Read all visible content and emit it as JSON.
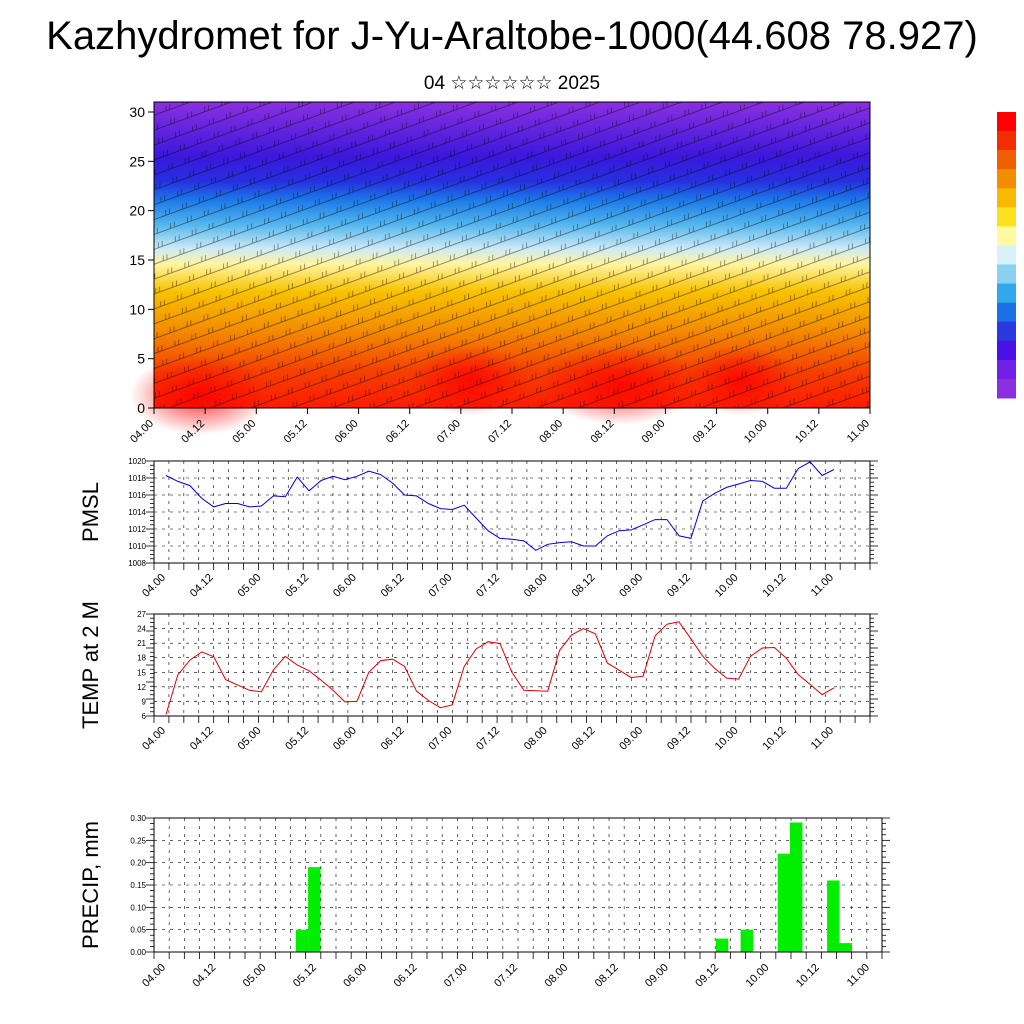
{
  "title": "Kazhydromet for J-Yu-Araltobe-1000(44.608 78.927)",
  "subtitle": "04 ☆☆☆☆☆☆ 2025",
  "colors": {
    "pmsl_line": "#0000dd",
    "temp_line": "#dd0000",
    "precip_bar": "#00ee00",
    "colorbar": [
      "#ff0000",
      "#f22d00",
      "#f06000",
      "#f48c00",
      "#f7ba00",
      "#fbe020",
      "#fff9a0",
      "#d8f0f8",
      "#8ad0f0",
      "#30a8ec",
      "#1b70e8",
      "#2a38e0",
      "#4a10e8",
      "#7020e8",
      "#8a30e0"
    ]
  },
  "chart_data": [
    {
      "type": "heatmap",
      "name": "cross-section",
      "ylim": [
        0,
        30
      ],
      "yticks": [
        0,
        5,
        10,
        15,
        20,
        25,
        30
      ],
      "x_tick_labels": [
        "04.00",
        "04.12",
        "05.00",
        "05.12",
        "06.00",
        "06.12",
        "07.00",
        "07.12",
        "08.00",
        "08.12",
        "09.00",
        "09.12",
        "10.00",
        "10.12",
        "11.00"
      ],
      "grid": false,
      "overlay": "wind barbs"
    },
    {
      "type": "line",
      "ylabel": "PMSL",
      "ylim": [
        1008,
        1020
      ],
      "yticks": [
        1008,
        1010,
        1012,
        1014,
        1016,
        1018,
        1020
      ],
      "x_tick_labels": [
        "04.00",
        "04.12",
        "05.00",
        "05.12",
        "06.00",
        "06.12",
        "07.00",
        "07.12",
        "08.00",
        "08.12",
        "09.00",
        "09.12",
        "10.00",
        "10.12",
        "11.00"
      ],
      "grid": true,
      "series": [
        {
          "values": [
            1018.3,
            1017.6,
            1017.1,
            1015.6,
            1014.6,
            1015.0,
            1015.0,
            1014.6,
            1014.7,
            1015.9,
            1015.8,
            1018.1,
            1016.5,
            1017.7,
            1018.2,
            1017.8,
            1018.2,
            1018.8,
            1018.4,
            1017.4,
            1016.0,
            1015.9,
            1015.0,
            1014.4,
            1014.3,
            1014.8,
            1013.3,
            1011.8,
            1010.9,
            1010.8,
            1010.6,
            1009.5,
            1010.2,
            1010.4,
            1010.5,
            1010.0,
            1010.0,
            1011.2,
            1011.8,
            1011.9,
            1012.5,
            1013.1,
            1013.1,
            1011.2,
            1010.9,
            1015.3,
            1016.2,
            1016.9,
            1017.3,
            1017.7,
            1017.6,
            1016.8,
            1016.8,
            1019.1,
            1019.9,
            1018.3,
            1019.0
          ]
        }
      ]
    },
    {
      "type": "line",
      "ylabel": "TEMP at 2 M",
      "ylim": [
        6,
        27
      ],
      "yticks": [
        6,
        9,
        12,
        15,
        18,
        21,
        24,
        27
      ],
      "x_tick_labels": [
        "04.00",
        "04.12",
        "05.00",
        "05.12",
        "06.00",
        "06.12",
        "07.00",
        "07.12",
        "08.00",
        "08.12",
        "09.00",
        "09.12",
        "10.00",
        "10.12",
        "11.00"
      ],
      "grid": true,
      "series": [
        {
          "values": [
            6.3,
            14.5,
            17.5,
            19.2,
            18.2,
            13.5,
            12.4,
            11.3,
            11.0,
            15.5,
            18.3,
            16.5,
            15.3,
            13.4,
            11.3,
            8.9,
            9.0,
            15.0,
            17.4,
            17.7,
            16.2,
            11.1,
            9.2,
            7.7,
            8.3,
            16.2,
            19.8,
            21.3,
            20.9,
            15.0,
            11.3,
            11.2,
            11.1,
            19.5,
            22.7,
            24.0,
            22.9,
            16.9,
            15.4,
            13.9,
            14.2,
            22.5,
            24.9,
            25.4,
            21.9,
            18.3,
            15.8,
            13.8,
            13.6,
            18.3,
            20.0,
            20.1,
            17.9,
            14.5,
            12.5,
            10.4,
            11.8
          ]
        }
      ]
    },
    {
      "type": "bar",
      "ylabel": "PRECIP, mm",
      "ylim": [
        0,
        0.3
      ],
      "ytick_labels": [
        "0.00",
        "0.05",
        "0.10",
        "0.15",
        "0.20",
        "0.25",
        "0.30"
      ],
      "x_tick_labels": [
        "04.00",
        "04.12",
        "05.00",
        "05.12",
        "06.00",
        "06.12",
        "07.00",
        "07.12",
        "08.00",
        "08.12",
        "09.00",
        "09.12",
        "10.00",
        "10.12",
        "11.00"
      ],
      "grid": true,
      "values": [
        0,
        0,
        0,
        0,
        0,
        0,
        0,
        0,
        0,
        0,
        0,
        0.05,
        0.19,
        0,
        0,
        0,
        0,
        0,
        0,
        0,
        0,
        0,
        0,
        0,
        0,
        0,
        0,
        0,
        0,
        0,
        0,
        0,
        0,
        0,
        0,
        0,
        0,
        0,
        0,
        0,
        0,
        0,
        0,
        0,
        0,
        0.03,
        0,
        0.05,
        0,
        0,
        0.22,
        0.29,
        0,
        0,
        0.16,
        0.02,
        0
      ]
    }
  ]
}
